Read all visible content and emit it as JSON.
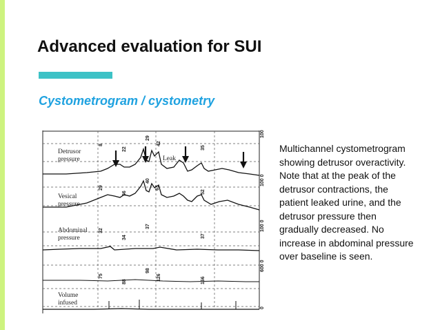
{
  "slide": {
    "title": "Advanced evaluation for SUI",
    "subtitle": "Cystometrogram / cystometry",
    "description": "Multichannel cystometrogram showing detrusor overactivity. Note that at the peak of the detrusor contractions, the patient leaked urine, and the detrusor pressure then gradually decreased. No increase in abdominal pressure over baseline is seen.",
    "colors": {
      "left_bar": "#cdf37f",
      "accent": "#3dc2c6",
      "subtitle": "#1fa2e0"
    }
  },
  "figure": {
    "traces": [
      {
        "label_line1": "Detrusor",
        "label_line2": "pressure"
      },
      {
        "label_line1": "Vesical",
        "label_line2": "pressure"
      },
      {
        "label_line1": "Abdominal",
        "label_line2": "pressure"
      },
      {
        "label_line1": "Volume",
        "label_line2": "infused"
      }
    ],
    "leak_label": "Leak",
    "scale_labels": [
      "100",
      "100 0",
      "100 0",
      "600 0",
      "0"
    ],
    "detrusor_marks": [
      "8",
      "22",
      "29",
      "42",
      "35"
    ],
    "vesical_marks": [
      "29",
      "56",
      "40",
      "63",
      "52"
    ],
    "abdominal_marks": [
      "32",
      "34",
      "37",
      "37"
    ],
    "volume_marks": [
      "75",
      "88",
      "98",
      "126",
      "166"
    ]
  }
}
